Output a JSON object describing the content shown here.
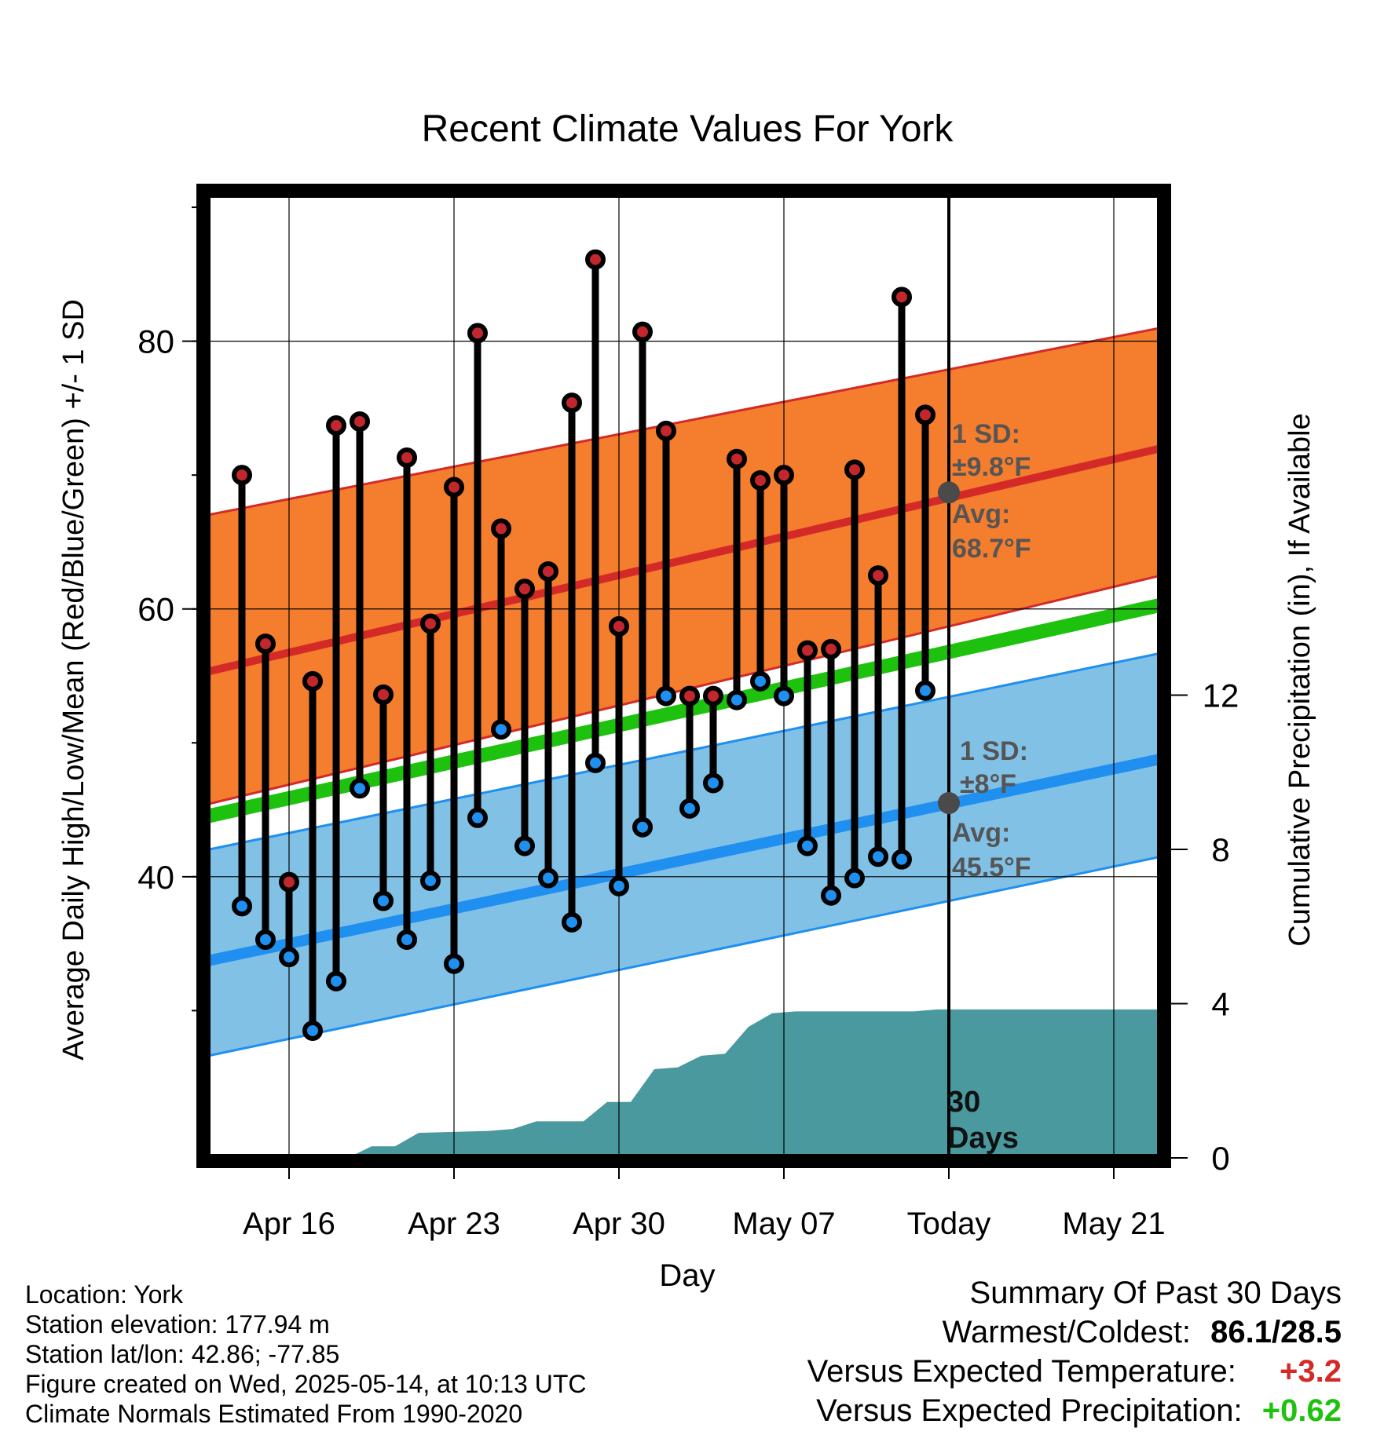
{
  "chart_data": {
    "type": "line",
    "title": "Recent Climate Values For York",
    "xlabel": "Day",
    "ylabel": "Average Daily High/Low/Mean (Red/Blue/Green) +/- 1 SD",
    "y2label": "Cumulative Precipitation (in), If Available",
    "x_tick_labels": [
      "Apr 16",
      "Apr 23",
      "Apr 30",
      "May 07",
      "Today",
      "May 21"
    ],
    "x_tick_days": [
      3,
      10,
      17,
      24,
      31,
      38
    ],
    "x_range_days": [
      -0.5,
      40
    ],
    "today_day": 31,
    "y_ticks": [
      40,
      60,
      80
    ],
    "ylim": [
      19,
      91
    ],
    "y2_ticks": [
      0,
      4,
      8,
      12
    ],
    "y2lim": [
      0,
      25
    ],
    "normals": {
      "start_day": -0.5,
      "end_day": 40,
      "high_avg": [
        55.3,
        72.0
      ],
      "high_sd_lower": [
        45.4,
        62.5
      ],
      "high_sd_upper": [
        67.0,
        81.0
      ],
      "mean": [
        44.5,
        60.3
      ],
      "low_avg": [
        33.7,
        48.8
      ],
      "low_sd_lower": [
        26.6,
        41.5
      ],
      "low_sd_upper": [
        42.0,
        56.7
      ]
    },
    "daily": [
      {
        "day": 1,
        "high": 70.0,
        "low": 37.8
      },
      {
        "day": 2,
        "high": 57.4,
        "low": 35.3
      },
      {
        "day": 3,
        "high": 39.6,
        "low": 34.0
      },
      {
        "day": 4,
        "high": 54.6,
        "low": 28.5
      },
      {
        "day": 5,
        "high": 73.7,
        "low": 32.2
      },
      {
        "day": 6,
        "high": 74.0,
        "low": 46.6
      },
      {
        "day": 7,
        "high": 53.6,
        "low": 38.2
      },
      {
        "day": 8,
        "high": 71.3,
        "low": 35.3
      },
      {
        "day": 9,
        "high": 58.9,
        "low": 39.7
      },
      {
        "day": 10,
        "high": 69.1,
        "low": 33.5
      },
      {
        "day": 11,
        "high": 80.6,
        "low": 44.4
      },
      {
        "day": 12,
        "high": 66.0,
        "low": 51.0
      },
      {
        "day": 13,
        "high": 61.5,
        "low": 42.3
      },
      {
        "day": 14,
        "high": 62.8,
        "low": 39.9
      },
      {
        "day": 15,
        "high": 75.4,
        "low": 36.6
      },
      {
        "day": 16,
        "high": 86.1,
        "low": 48.5
      },
      {
        "day": 17,
        "high": 58.7,
        "low": 39.3
      },
      {
        "day": 18,
        "high": 80.7,
        "low": 43.7
      },
      {
        "day": 19,
        "high": 73.3,
        "low": 53.5
      },
      {
        "day": 20,
        "high": 53.5,
        "low": 45.1
      },
      {
        "day": 21,
        "high": 53.5,
        "low": 47.0
      },
      {
        "day": 22,
        "high": 71.2,
        "low": 53.2
      },
      {
        "day": 23,
        "high": 69.6,
        "low": 54.6
      },
      {
        "day": 24,
        "high": 70.0,
        "low": 53.5
      },
      {
        "day": 25,
        "high": 56.9,
        "low": 42.3
      },
      {
        "day": 26,
        "high": 57.0,
        "low": 38.6
      },
      {
        "day": 27,
        "high": 70.4,
        "low": 39.9
      },
      {
        "day": 28,
        "high": 62.5,
        "low": 41.5
      },
      {
        "day": 29,
        "high": 83.3,
        "low": 41.3
      },
      {
        "day": 30,
        "high": 74.5,
        "low": 53.9
      }
    ],
    "precip_cumulative": {
      "days": [
        0.5,
        5.5,
        6.5,
        7.5,
        8.5,
        11.5,
        12.5,
        13.5,
        15.5,
        16.5,
        17.5,
        18.5,
        19.5,
        20.5,
        21.5,
        22.5,
        23.5,
        24.5,
        26.5,
        29.5,
        30.5,
        40
      ],
      "values": [
        0,
        0,
        0.3,
        0.3,
        0.65,
        0.7,
        0.75,
        0.95,
        0.95,
        1.45,
        1.45,
        2.3,
        2.35,
        2.65,
        2.7,
        3.4,
        3.75,
        3.8,
        3.8,
        3.8,
        3.85,
        3.85
      ]
    },
    "annotations": {
      "high_sd_label": "1 SD:",
      "high_sd_value": "±9.8°F",
      "high_avg_label": "Avg:",
      "high_avg_value": "68.7°F",
      "high_avg_point": 68.7,
      "low_sd_label": "1 SD:",
      "low_sd_value": "±8°F",
      "low_avg_label": "Avg:",
      "low_avg_value": "45.5°F",
      "low_avg_point": 45.5,
      "period_label_1": "30",
      "period_label_2": "Days"
    },
    "colors": {
      "high_band": "#f47d2e",
      "high_line": "#d42a27",
      "low_band": "#82c1e6",
      "low_line": "#1f8ff0",
      "mean_line": "#1ec20e",
      "precip": "#49999f",
      "high_marker": "#c2272d",
      "low_marker": "#1f8ff0",
      "annotation": "#555555",
      "positive_temp": "#d42a27",
      "positive_precip": "#1ec20e"
    }
  },
  "info": {
    "location": "Location: York",
    "elevation": "Station elevation: 177.94 m",
    "latlon": "Station lat/lon: 42.86; -77.85",
    "created": "Figure created on Wed, 2025-05-14, at 10:13 UTC",
    "normals": "Climate Normals Estimated From 1990-2020"
  },
  "summary": {
    "title": "Summary Of Past 30 Days",
    "warm_cold_label": "Warmest/Coldest:",
    "warm_cold_value": "86.1/28.5",
    "temp_label": "Versus Expected Temperature:",
    "temp_value": "+3.2",
    "precip_label": "Versus Expected Precipitation:",
    "precip_value": "+0.62"
  }
}
